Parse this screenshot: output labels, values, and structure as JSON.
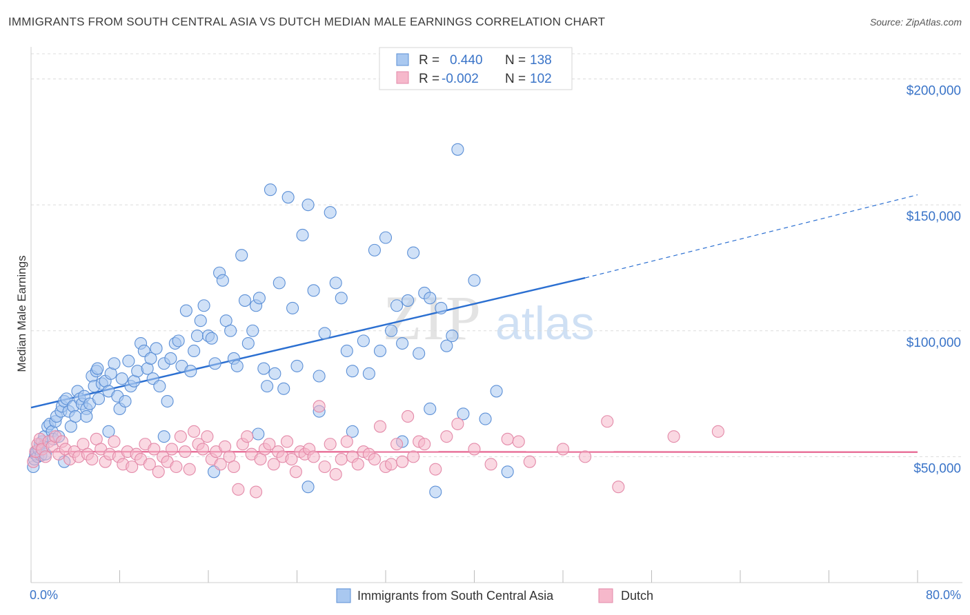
{
  "title": "IMMIGRANTS FROM SOUTH CENTRAL ASIA VS DUTCH MEDIAN MALE EARNINGS CORRELATION CHART",
  "source": "Source: ZipAtlas.com",
  "watermark": {
    "zip": "ZIP",
    "atlas": "atlas"
  },
  "colors": {
    "blue_fill": "#a9c8f0",
    "blue_stroke": "#5b8fd6",
    "blue_line": "#2b6fd1",
    "pink_fill": "#f6b8cb",
    "pink_stroke": "#e389a8",
    "pink_line": "#e8729a",
    "axis_label": "#3a74c8",
    "grid": "#dcdcdc"
  },
  "legend_top": {
    "rows": [
      {
        "r_label": "R =",
        "r_value": "0.440",
        "n_label": "N =",
        "n_value": "138"
      },
      {
        "r_label": "R =",
        "r_value": "-0.002",
        "n_label": "N =",
        "n_value": "102"
      }
    ]
  },
  "chart_data": {
    "type": "scatter",
    "ylabel": "Median Male Earnings",
    "x_tick_labels": [
      "0.0%",
      "80.0%"
    ],
    "y_tick_labels": [
      "$50,000",
      "$100,000",
      "$150,000",
      "$200,000"
    ],
    "x_range": [
      0,
      80
    ],
    "y_range": [
      0,
      210000
    ],
    "y_ticks": [
      50000,
      100000,
      150000,
      200000
    ],
    "legend_placement": "top-center and bottom",
    "grid": true,
    "series": [
      {
        "name": "Immigrants from South Central Asia",
        "color": "#a9c8f0",
        "trend": {
          "x0": 0,
          "y0": 69500,
          "x1": 50,
          "y1": 121000,
          "dashed_to_x": 80,
          "dashed_to_y": 154000
        },
        "points": [
          [
            0.2,
            46000
          ],
          [
            0.3,
            49000
          ],
          [
            0.4,
            51000
          ],
          [
            0.5,
            52000
          ],
          [
            0.6,
            50000
          ],
          [
            0.7,
            53000
          ],
          [
            0.8,
            55000
          ],
          [
            0.9,
            50500
          ],
          [
            1.0,
            56000
          ],
          [
            1.2,
            58000
          ],
          [
            1.3,
            51000
          ],
          [
            1.5,
            62000
          ],
          [
            1.7,
            63000
          ],
          [
            1.9,
            60000
          ],
          [
            2.0,
            57000
          ],
          [
            2.2,
            64000
          ],
          [
            2.3,
            66000
          ],
          [
            2.5,
            58000
          ],
          [
            2.7,
            68000
          ],
          [
            2.8,
            70000
          ],
          [
            3.0,
            72000
          ],
          [
            3.2,
            73000
          ],
          [
            3.4,
            68000
          ],
          [
            3.6,
            62000
          ],
          [
            3.8,
            70000
          ],
          [
            4.0,
            66000
          ],
          [
            4.2,
            76000
          ],
          [
            4.4,
            73000
          ],
          [
            4.6,
            71000
          ],
          [
            4.8,
            74000
          ],
          [
            5.0,
            69000
          ],
          [
            5.3,
            71000
          ],
          [
            5.5,
            82000
          ],
          [
            5.7,
            78000
          ],
          [
            5.9,
            84000
          ],
          [
            6.1,
            73000
          ],
          [
            6.4,
            79000
          ],
          [
            6.7,
            80000
          ],
          [
            7.0,
            76000
          ],
          [
            7.2,
            83000
          ],
          [
            7.5,
            87000
          ],
          [
            7.8,
            74000
          ],
          [
            8.0,
            69000
          ],
          [
            8.2,
            81000
          ],
          [
            8.5,
            72000
          ],
          [
            8.8,
            88000
          ],
          [
            9.0,
            78000
          ],
          [
            9.3,
            80000
          ],
          [
            9.6,
            84000
          ],
          [
            9.9,
            95000
          ],
          [
            10.2,
            92000
          ],
          [
            10.5,
            85000
          ],
          [
            10.8,
            89000
          ],
          [
            11.0,
            81000
          ],
          [
            11.3,
            93000
          ],
          [
            11.6,
            78000
          ],
          [
            12.0,
            87000
          ],
          [
            12.3,
            72000
          ],
          [
            12.6,
            89000
          ],
          [
            13.0,
            95000
          ],
          [
            13.3,
            96000
          ],
          [
            13.6,
            86000
          ],
          [
            14.0,
            108000
          ],
          [
            14.4,
            84000
          ],
          [
            14.7,
            92000
          ],
          [
            15.0,
            98000
          ],
          [
            15.3,
            104000
          ],
          [
            15.6,
            110000
          ],
          [
            16.0,
            98000
          ],
          [
            16.3,
            97000
          ],
          [
            16.6,
            87000
          ],
          [
            17.0,
            123000
          ],
          [
            17.3,
            120000
          ],
          [
            17.6,
            104000
          ],
          [
            18.0,
            100000
          ],
          [
            18.3,
            89000
          ],
          [
            18.6,
            86000
          ],
          [
            19.0,
            130000
          ],
          [
            19.3,
            112000
          ],
          [
            19.6,
            95000
          ],
          [
            20.0,
            100000
          ],
          [
            20.3,
            110000
          ],
          [
            20.6,
            113000
          ],
          [
            21.0,
            85000
          ],
          [
            21.3,
            78000
          ],
          [
            21.6,
            156000
          ],
          [
            22.0,
            83000
          ],
          [
            22.4,
            119000
          ],
          [
            22.8,
            77000
          ],
          [
            23.2,
            153000
          ],
          [
            23.6,
            109000
          ],
          [
            24.0,
            86000
          ],
          [
            24.5,
            138000
          ],
          [
            25.0,
            150000
          ],
          [
            25.5,
            116000
          ],
          [
            26.0,
            82000
          ],
          [
            26.5,
            99000
          ],
          [
            27.0,
            147000
          ],
          [
            27.5,
            119000
          ],
          [
            28.0,
            113000
          ],
          [
            28.5,
            92000
          ],
          [
            29.0,
            84000
          ],
          [
            30.0,
            96000
          ],
          [
            30.5,
            83000
          ],
          [
            31.0,
            132000
          ],
          [
            31.5,
            92000
          ],
          [
            32.0,
            137000
          ],
          [
            32.5,
            100000
          ],
          [
            33.0,
            110000
          ],
          [
            33.5,
            95000
          ],
          [
            34.0,
            112000
          ],
          [
            34.5,
            131000
          ],
          [
            35.0,
            91000
          ],
          [
            35.5,
            115000
          ],
          [
            36.0,
            113000
          ],
          [
            36.5,
            36000
          ],
          [
            37.0,
            109000
          ],
          [
            37.5,
            94000
          ],
          [
            38.0,
            98000
          ],
          [
            38.5,
            172000
          ],
          [
            39.0,
            67000
          ],
          [
            40.0,
            120000
          ],
          [
            41.0,
            65000
          ],
          [
            42.0,
            76000
          ],
          [
            43.0,
            44000
          ],
          [
            3.0,
            48000
          ],
          [
            5.0,
            66000
          ],
          [
            7.0,
            60000
          ],
          [
            12.0,
            58000
          ],
          [
            16.5,
            44000
          ],
          [
            20.5,
            59000
          ],
          [
            25.0,
            38000
          ],
          [
            26.0,
            68000
          ],
          [
            29.0,
            60000
          ],
          [
            33.5,
            56000
          ],
          [
            36.0,
            69000
          ],
          [
            1.1,
            54000
          ],
          [
            6.0,
            85000
          ]
        ]
      },
      {
        "name": "Dutch",
        "color": "#f6b8cb",
        "trend": {
          "x0": 0,
          "y0": 52000,
          "x1": 80,
          "y1": 51800
        },
        "points": [
          [
            0.2,
            48000
          ],
          [
            0.4,
            52000
          ],
          [
            0.6,
            55000
          ],
          [
            0.8,
            57000
          ],
          [
            1.0,
            53000
          ],
          [
            1.3,
            50000
          ],
          [
            1.6,
            56000
          ],
          [
            1.9,
            54000
          ],
          [
            2.2,
            58000
          ],
          [
            2.5,
            51000
          ],
          [
            2.8,
            56000
          ],
          [
            3.1,
            53000
          ],
          [
            3.5,
            49000
          ],
          [
            3.9,
            52000
          ],
          [
            4.3,
            50000
          ],
          [
            4.7,
            55000
          ],
          [
            5.1,
            51000
          ],
          [
            5.5,
            49000
          ],
          [
            5.9,
            57000
          ],
          [
            6.3,
            53000
          ],
          [
            6.7,
            48000
          ],
          [
            7.1,
            51000
          ],
          [
            7.5,
            56000
          ],
          [
            7.9,
            50000
          ],
          [
            8.3,
            47000
          ],
          [
            8.7,
            52000
          ],
          [
            9.1,
            46000
          ],
          [
            9.5,
            51000
          ],
          [
            9.9,
            49000
          ],
          [
            10.3,
            55000
          ],
          [
            10.7,
            47000
          ],
          [
            11.1,
            53000
          ],
          [
            11.5,
            44000
          ],
          [
            11.9,
            50000
          ],
          [
            12.3,
            48000
          ],
          [
            12.7,
            53000
          ],
          [
            13.1,
            46000
          ],
          [
            13.5,
            58000
          ],
          [
            13.9,
            52000
          ],
          [
            14.3,
            45000
          ],
          [
            14.7,
            60000
          ],
          [
            15.1,
            55000
          ],
          [
            15.5,
            53000
          ],
          [
            15.9,
            58000
          ],
          [
            16.3,
            49000
          ],
          [
            16.7,
            52000
          ],
          [
            17.1,
            47000
          ],
          [
            17.5,
            54000
          ],
          [
            17.9,
            50000
          ],
          [
            18.3,
            46000
          ],
          [
            18.7,
            37000
          ],
          [
            19.1,
            55000
          ],
          [
            19.5,
            58000
          ],
          [
            19.9,
            51000
          ],
          [
            20.3,
            36000
          ],
          [
            20.7,
            49000
          ],
          [
            21.1,
            53000
          ],
          [
            21.5,
            55000
          ],
          [
            21.9,
            47000
          ],
          [
            22.3,
            52000
          ],
          [
            22.7,
            50000
          ],
          [
            23.1,
            56000
          ],
          [
            23.5,
            49000
          ],
          [
            23.9,
            44000
          ],
          [
            24.3,
            52000
          ],
          [
            24.7,
            51000
          ],
          [
            25.1,
            53000
          ],
          [
            25.5,
            50000
          ],
          [
            26.0,
            70000
          ],
          [
            26.5,
            46000
          ],
          [
            27.0,
            55000
          ],
          [
            27.5,
            43000
          ],
          [
            28.0,
            49000
          ],
          [
            28.5,
            56000
          ],
          [
            29.0,
            50000
          ],
          [
            29.5,
            47000
          ],
          [
            30.0,
            52000
          ],
          [
            30.5,
            51000
          ],
          [
            31.0,
            49000
          ],
          [
            31.5,
            62000
          ],
          [
            32.0,
            46000
          ],
          [
            32.5,
            47000
          ],
          [
            33.0,
            55000
          ],
          [
            33.5,
            48000
          ],
          [
            34.0,
            66000
          ],
          [
            34.5,
            50000
          ],
          [
            35.0,
            56000
          ],
          [
            35.5,
            55000
          ],
          [
            36.5,
            45000
          ],
          [
            37.5,
            58000
          ],
          [
            38.5,
            63000
          ],
          [
            40.0,
            53000
          ],
          [
            41.5,
            47000
          ],
          [
            43.0,
            57000
          ],
          [
            44.0,
            56000
          ],
          [
            45.0,
            48000
          ],
          [
            48.0,
            53000
          ],
          [
            50.0,
            50000
          ],
          [
            52.0,
            64000
          ],
          [
            53.0,
            38000
          ],
          [
            58.0,
            58000
          ],
          [
            62.0,
            60000
          ]
        ]
      }
    ]
  },
  "legend_bottom": [
    {
      "label": "Immigrants from South Central Asia"
    },
    {
      "label": "Dutch"
    }
  ]
}
